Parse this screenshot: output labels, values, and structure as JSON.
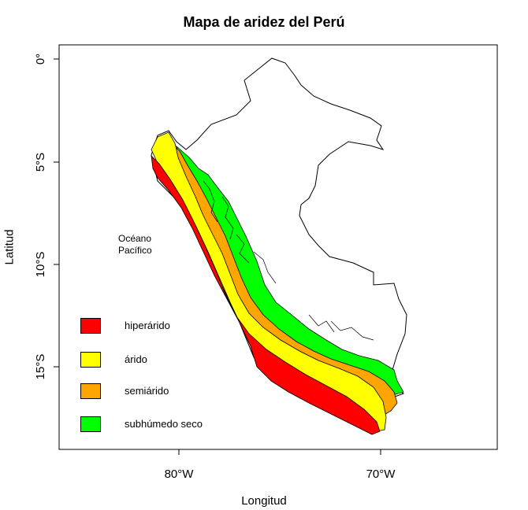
{
  "title": "Mapa de aridez del Perú",
  "xlabel": "Longitud",
  "ylabel": "Latitud",
  "annotation": [
    "Océano",
    "Pacífico"
  ],
  "x_ticks": [
    "80°W",
    "70°W"
  ],
  "y_ticks": [
    "0°",
    "5°S",
    "10°S",
    "15°S"
  ],
  "legend": [
    {
      "label": "hiperárido",
      "color": "#ff0000"
    },
    {
      "label": "árido",
      "color": "#ffff00"
    },
    {
      "label": "semiárido",
      "color": "#ffa500"
    },
    {
      "label": "subhúmedo seco",
      "color": "#00ff00"
    }
  ],
  "chart_data": {
    "type": "map",
    "title": "Mapa de aridez del Perú",
    "xlabel": "Longitud",
    "ylabel": "Latitud",
    "categories": [
      "hiperárido",
      "árido",
      "semiárido",
      "subhúmedo seco"
    ],
    "colors": [
      "#ff0000",
      "#ffff00",
      "#ffa500",
      "#00ff00"
    ],
    "x_ticks": [
      "80°W",
      "70°W"
    ],
    "y_ticks": [
      "0°",
      "5°S",
      "10°S",
      "15°S"
    ],
    "legend_position": "bottom-left"
  }
}
